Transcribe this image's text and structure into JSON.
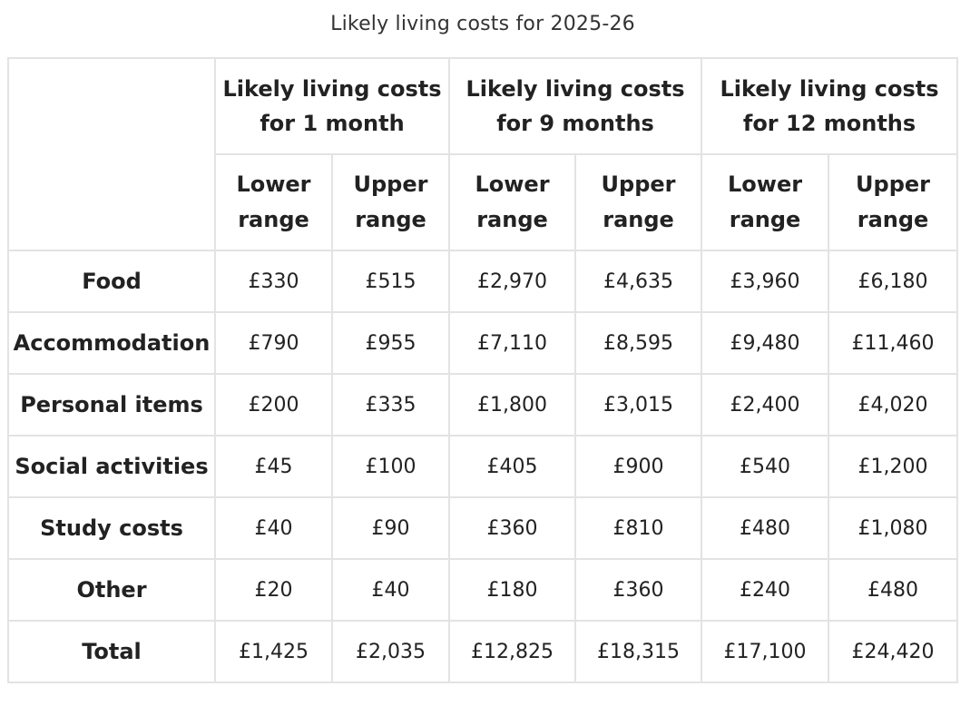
{
  "caption": "Likely living costs for 2025-26",
  "table": {
    "groups": [
      {
        "line1": "Likely living costs",
        "line2": "for 1 month"
      },
      {
        "line1": "Likely living costs",
        "line2": "for 9 months"
      },
      {
        "line1": "Likely living costs",
        "line2": "for 12 months"
      }
    ],
    "sub_headers": [
      {
        "line1": "Lower",
        "line2": "range"
      },
      {
        "line1": "Upper",
        "line2": "range"
      },
      {
        "line1": "Lower",
        "line2": "range"
      },
      {
        "line1": "Upper",
        "line2": "range"
      },
      {
        "line1": "Lower",
        "line2": "range"
      },
      {
        "line1": "Upper",
        "line2": "range"
      }
    ],
    "rows": [
      {
        "label": "Food",
        "values": [
          "£330",
          "£515",
          "£2,970",
          "£4,635",
          "£3,960",
          "£6,180"
        ]
      },
      {
        "label": "Accommodation",
        "values": [
          "£790",
          "£955",
          "£7,110",
          "£8,595",
          "£9,480",
          "£11,460"
        ]
      },
      {
        "label": "Personal items",
        "values": [
          "£200",
          "£335",
          "£1,800",
          "£3,015",
          "£2,400",
          "£4,020"
        ]
      },
      {
        "label": "Social activities",
        "values": [
          "£45",
          "£100",
          "£405",
          "£900",
          "£540",
          "£1,200"
        ]
      },
      {
        "label": "Study costs",
        "values": [
          "£40",
          "£90",
          "£360",
          "£810",
          "£480",
          "£1,080"
        ]
      },
      {
        "label": "Other",
        "values": [
          "£20",
          "£40",
          "£180",
          "£360",
          "£240",
          "£480"
        ]
      },
      {
        "label": "Total",
        "values": [
          "£1,425",
          "£2,035",
          "£12,825",
          "£18,315",
          "£17,100",
          "£24,420"
        ]
      }
    ]
  }
}
